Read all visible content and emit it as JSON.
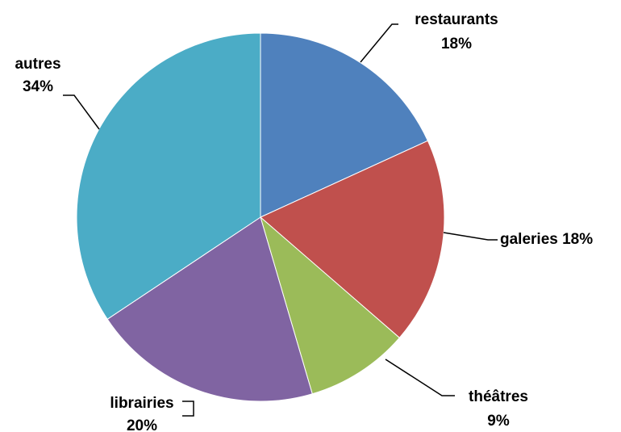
{
  "chart_data": {
    "type": "pie",
    "title": "",
    "slices": [
      {
        "label": "restaurants",
        "value": 18,
        "value_label": "18%",
        "color": "#4F81BD"
      },
      {
        "label": "galeries",
        "value": 18,
        "value_label": "18%",
        "color": "#C0504D"
      },
      {
        "label": "théâtres",
        "value": 9,
        "value_label": "9%",
        "color": "#9BBB59"
      },
      {
        "label": "librairies",
        "value": 20,
        "value_label": "20%",
        "color": "#8064A2"
      },
      {
        "label": "autres",
        "value": 34,
        "value_label": "34%",
        "color": "#4BACC6"
      }
    ],
    "start": "12 o'clock",
    "direction": "clockwise",
    "legend": "none",
    "data_labels": "outside with leader lines"
  }
}
